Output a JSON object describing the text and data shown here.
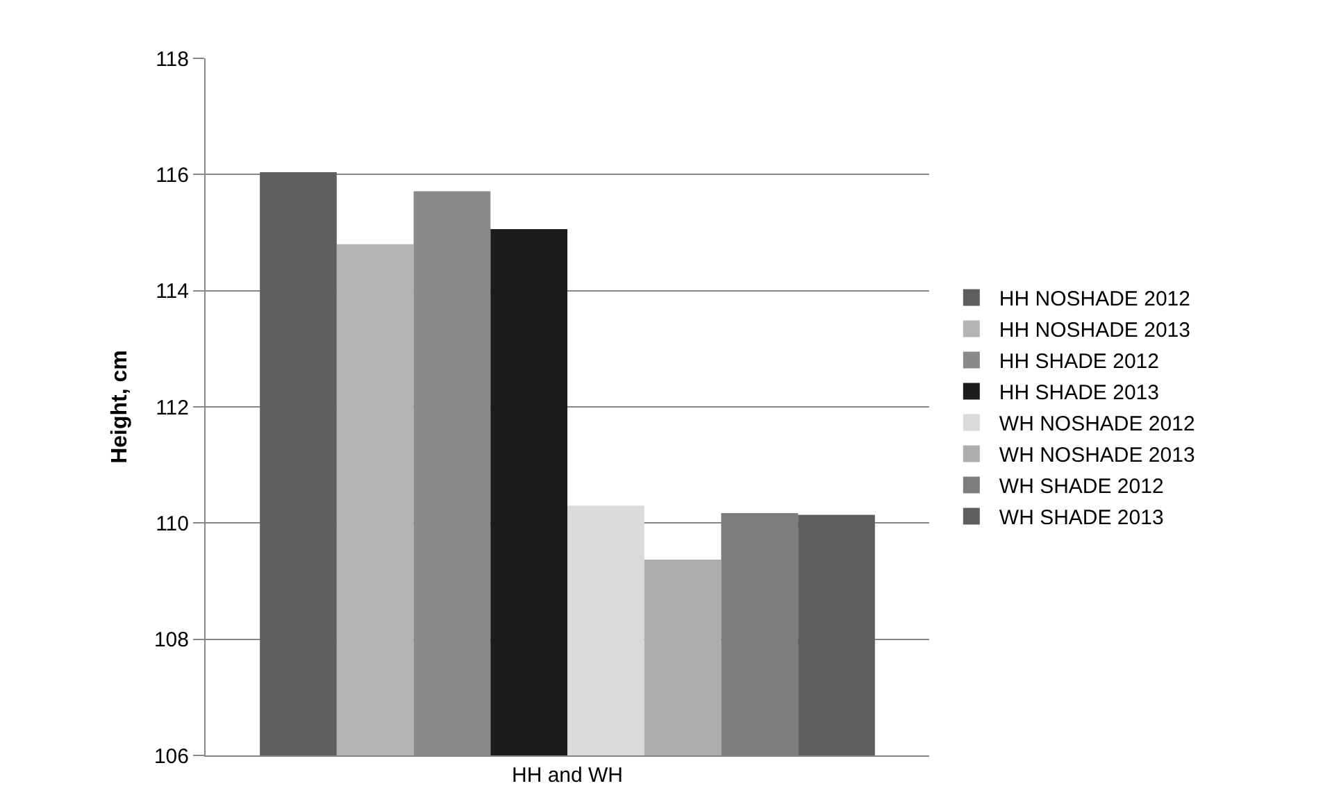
{
  "chart_data": {
    "type": "bar",
    "ylabel": "Height, cm",
    "categories": [
      "HH and WH"
    ],
    "series": [
      {
        "name": "HH NOSHADE 2012",
        "color": "#5e5e5e",
        "values": [
          116.04
        ]
      },
      {
        "name": "HH NOSHADE 2013",
        "color": "#b3b3b3",
        "values": [
          114.8
        ]
      },
      {
        "name": "HH SHADE 2012",
        "color": "#8a8a8a",
        "values": [
          115.71
        ]
      },
      {
        "name": "HH SHADE 2013",
        "color": "#1c1c1c",
        "values": [
          115.06
        ]
      },
      {
        "name": "WH NOSHADE 2012",
        "color": "#dadada",
        "values": [
          110.3
        ]
      },
      {
        "name": "WH NOSHADE 2013",
        "color": "#adadad",
        "values": [
          109.37
        ]
      },
      {
        "name": "WH SHADE 2012",
        "color": "#7d7d7d",
        "values": [
          110.17
        ]
      },
      {
        "name": "WH SHADE 2013",
        "color": "#5e5e5e",
        "values": [
          110.14
        ]
      }
    ],
    "ylim": [
      106,
      118
    ],
    "yticks": [
      106,
      108,
      110,
      112,
      114,
      116,
      118
    ],
    "grid": "y",
    "legend": "right"
  }
}
